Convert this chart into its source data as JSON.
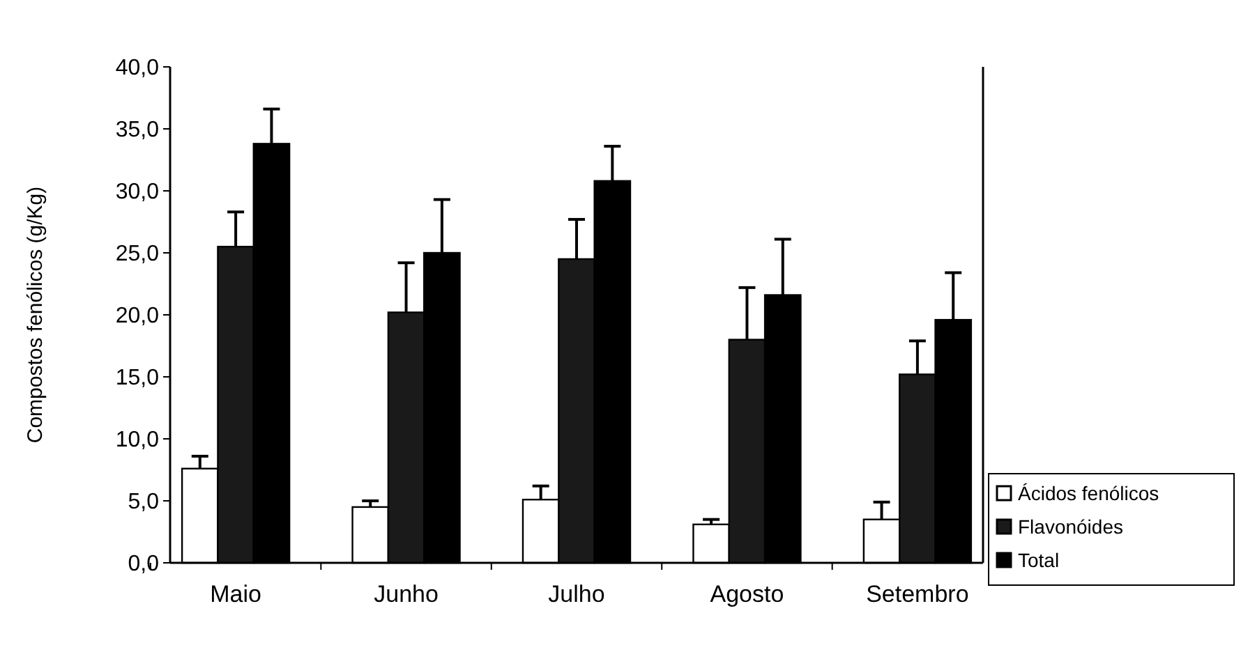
{
  "chart_data": {
    "type": "bar",
    "ylabel": "Compostos fenólicos (g/Kg)",
    "categories": [
      "Maio",
      "Junho",
      "Julho",
      "Agosto",
      "Setembro"
    ],
    "series": [
      {
        "name": "Ácidos fenólicos",
        "color": "#ffffff",
        "values": [
          7.6,
          4.5,
          5.1,
          3.1,
          3.5
        ],
        "errors": [
          [
            7.6,
            8.6
          ],
          [
            4.5,
            5.0
          ],
          [
            5.1,
            6.2
          ],
          [
            3.1,
            3.5
          ],
          [
            3.5,
            4.9
          ]
        ]
      },
      {
        "name": "Flavonóides",
        "color": "#1a1a1a",
        "values": [
          25.5,
          20.2,
          24.5,
          18.0,
          15.2
        ],
        "errors": [
          [
            25.5,
            28.3
          ],
          [
            20.2,
            24.2
          ],
          [
            24.5,
            27.7
          ],
          [
            18.0,
            22.2
          ],
          [
            15.2,
            17.9
          ]
        ]
      },
      {
        "name": "Total",
        "color": "#000000",
        "values": [
          33.8,
          25.0,
          30.8,
          21.6,
          19.6
        ],
        "errors": [
          [
            33.8,
            36.6
          ],
          [
            25.0,
            29.3
          ],
          [
            30.8,
            33.6
          ],
          [
            21.6,
            26.1
          ],
          [
            19.6,
            23.4
          ]
        ]
      }
    ],
    "ylim": [
      0,
      40
    ],
    "yticks": [
      {
        "value": 0,
        "label": "0,0"
      },
      {
        "value": 5,
        "label": "5,0"
      },
      {
        "value": 10,
        "label": "10,0"
      },
      {
        "value": 15,
        "label": "15,0"
      },
      {
        "value": 20,
        "label": "20,0"
      },
      {
        "value": 25,
        "label": "25,0"
      },
      {
        "value": 30,
        "label": "30,0"
      },
      {
        "value": 35,
        "label": "35,0"
      },
      {
        "value": 40,
        "label": "40,0"
      }
    ],
    "legend": "right",
    "grid": false
  }
}
